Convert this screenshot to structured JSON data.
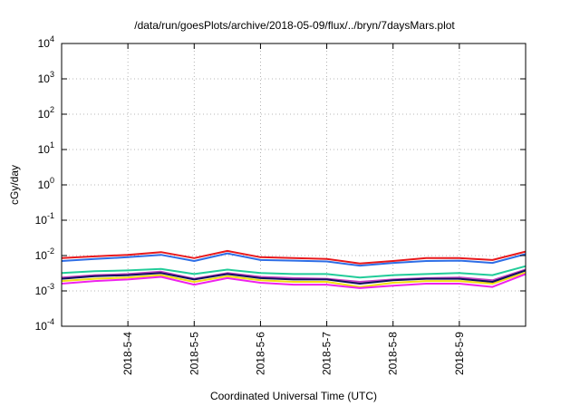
{
  "chart_data": {
    "type": "line",
    "title": "/data/run/goesPlots/archive/2018-05-09/flux/../bryn/7daysMars.plot",
    "xlabel": "Coordinated Universal Time (UTC)",
    "ylabel": "cGy/day",
    "y_scale": "log",
    "ylim": [
      0.0001,
      10000
    ],
    "x_range": [
      "2018-05-03T00:00",
      "2018-05-10T00:00"
    ],
    "grid": true,
    "x_ticks": [
      "2018-5-4",
      "2018-5-5",
      "2018-5-6",
      "2018-5-7",
      "2018-5-8",
      "2018-5-9"
    ],
    "y_ticks": [
      {
        "value": 0.0001,
        "base": "10",
        "exp": "-4"
      },
      {
        "value": 0.001,
        "base": "10",
        "exp": "-3"
      },
      {
        "value": 0.01,
        "base": "10",
        "exp": "-2"
      },
      {
        "value": 0.1,
        "base": "10",
        "exp": "-1"
      },
      {
        "value": 1,
        "base": "10",
        "exp": "0"
      },
      {
        "value": 10,
        "base": "10",
        "exp": "1"
      },
      {
        "value": 100,
        "base": "10",
        "exp": "2"
      },
      {
        "value": 1000,
        "base": "10",
        "exp": "3"
      },
      {
        "value": 10000,
        "base": "10",
        "exp": "4"
      }
    ],
    "x": [
      "2018-05-03T00:00",
      "2018-05-03T12:00",
      "2018-05-04T00:00",
      "2018-05-04T12:00",
      "2018-05-05T00:00",
      "2018-05-05T12:00",
      "2018-05-06T00:00",
      "2018-05-06T12:00",
      "2018-05-07T00:00",
      "2018-05-07T12:00",
      "2018-05-08T00:00",
      "2018-05-08T12:00",
      "2018-05-09T00:00",
      "2018-05-09T12:00",
      "2018-05-10T00:00"
    ],
    "series": [
      {
        "color": "#e8191c",
        "values": [
          0.0085,
          0.0095,
          0.0105,
          0.0125,
          0.0085,
          0.0135,
          0.009,
          0.0085,
          0.008,
          0.006,
          0.007,
          0.0085,
          0.0085,
          0.0075,
          0.013
        ]
      },
      {
        "color": "#2e6ee6",
        "values": [
          0.007,
          0.008,
          0.009,
          0.0105,
          0.007,
          0.0115,
          0.0075,
          0.0072,
          0.0068,
          0.0052,
          0.0062,
          0.007,
          0.0072,
          0.0062,
          0.011
        ]
      },
      {
        "color": "#22cc99",
        "values": [
          0.0032,
          0.0036,
          0.0038,
          0.0042,
          0.003,
          0.004,
          0.0032,
          0.003,
          0.003,
          0.0024,
          0.0028,
          0.003,
          0.0032,
          0.0028,
          0.005
        ]
      },
      {
        "color": "#c040c0",
        "values": [
          0.0024,
          0.0028,
          0.003,
          0.0035,
          0.0022,
          0.0032,
          0.0025,
          0.0023,
          0.0022,
          0.0018,
          0.0021,
          0.0023,
          0.0024,
          0.002,
          0.004
        ]
      },
      {
        "color": "#101060",
        "values": [
          0.0022,
          0.0026,
          0.0028,
          0.0032,
          0.0021,
          0.003,
          0.0023,
          0.0021,
          0.0021,
          0.0016,
          0.002,
          0.0022,
          0.0022,
          0.0018,
          0.0038
        ]
      },
      {
        "color": "#f0e010",
        "values": [
          0.0019,
          0.0022,
          0.0024,
          0.0028,
          0.0018,
          0.0026,
          0.002,
          0.0018,
          0.0018,
          0.0013,
          0.0017,
          0.0019,
          0.0019,
          0.0016,
          0.0033
        ]
      },
      {
        "color": "#ee22ee",
        "values": [
          0.0016,
          0.0019,
          0.0021,
          0.0025,
          0.0015,
          0.0023,
          0.0017,
          0.0015,
          0.0015,
          0.0012,
          0.0014,
          0.0016,
          0.0016,
          0.0013,
          0.003
        ]
      }
    ]
  }
}
